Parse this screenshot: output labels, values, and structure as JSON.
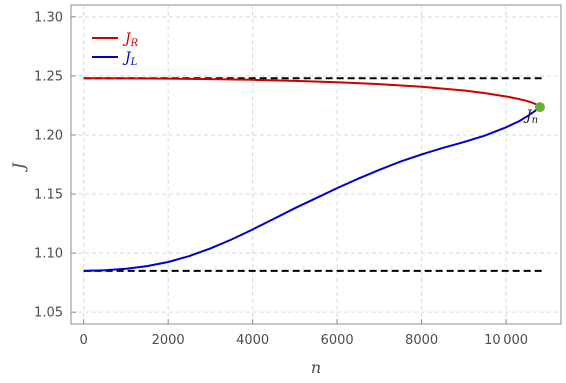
{
  "chart_data": {
    "type": "line",
    "xlabel": "n",
    "ylabel": "J",
    "xlim": [
      -300,
      11300
    ],
    "ylim": [
      1.04,
      1.31
    ],
    "x_ticks": [
      0,
      2000,
      4000,
      6000,
      8000,
      10000
    ],
    "x_tick_labels": [
      "0",
      "2000",
      "4000",
      "6000",
      "8000",
      "10 000"
    ],
    "y_ticks": [
      1.05,
      1.1,
      1.15,
      1.2,
      1.25,
      1.3
    ],
    "y_tick_labels": [
      "1.05",
      "1.10",
      "1.15",
      "1.20",
      "1.25",
      "1.30"
    ],
    "grid": true,
    "legend_placement": "top-left",
    "series": [
      {
        "name": "J_R",
        "label_main": "J",
        "label_sub": "R",
        "color": "#cc0000",
        "x": [
          0,
          1000,
          2000,
          3000,
          4000,
          5000,
          6000,
          7000,
          8000,
          9000,
          9500,
          10000,
          10300,
          10500,
          10650,
          10750,
          10800
        ],
        "y": [
          1.248,
          1.2479,
          1.2477,
          1.2473,
          1.2467,
          1.2458,
          1.2446,
          1.243,
          1.2408,
          1.2376,
          1.2354,
          1.2326,
          1.2305,
          1.2287,
          1.2269,
          1.2252,
          1.2236
        ]
      },
      {
        "name": "J_L",
        "label_main": "J",
        "label_sub": "L",
        "color": "#0000cc",
        "x": [
          0,
          500,
          1000,
          1500,
          2000,
          2500,
          3000,
          3500,
          4000,
          4500,
          5000,
          5500,
          6000,
          6500,
          7000,
          7500,
          8000,
          8500,
          9000,
          9500,
          10000,
          10300,
          10500,
          10650,
          10750,
          10800
        ],
        "y": [
          1.085,
          1.0855,
          1.0868,
          1.089,
          1.0925,
          1.0975,
          1.104,
          1.1115,
          1.12,
          1.129,
          1.138,
          1.1465,
          1.155,
          1.163,
          1.1705,
          1.1775,
          1.1835,
          1.189,
          1.194,
          1.1995,
          1.2065,
          1.2115,
          1.2158,
          1.2195,
          1.222,
          1.2236
        ]
      }
    ],
    "reference_lines": [
      {
        "y": 1.248,
        "style": "dashed",
        "color": "#000000"
      },
      {
        "y": 1.085,
        "style": "dashed",
        "color": "#000000"
      }
    ],
    "point": {
      "x": 10800,
      "y": 1.2236,
      "color": "#66b032",
      "label_main": "J",
      "label_sub": "n"
    }
  }
}
